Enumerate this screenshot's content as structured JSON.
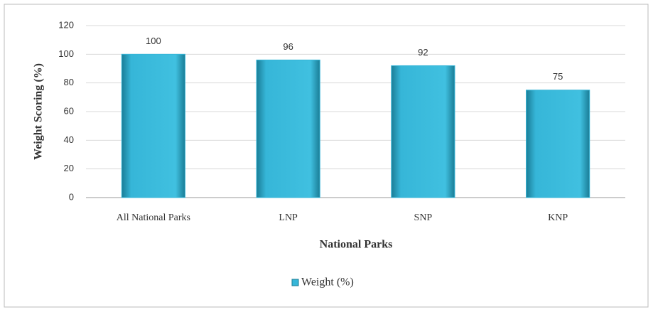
{
  "chart_data": {
    "type": "bar",
    "categories": [
      "All National Parks",
      "LNP",
      "SNP",
      "KNP"
    ],
    "series": [
      {
        "name": "Weight (%)",
        "color": "#36b6d8",
        "values": [
          100,
          96,
          92,
          75
        ]
      }
    ],
    "xlabel": "National Parks",
    "ylabel": "Weight Scoring (%)",
    "ylim": [
      0,
      120
    ],
    "yticks": [
      0,
      20,
      40,
      60,
      80,
      100,
      120
    ],
    "grid": true,
    "legend": "bottom"
  }
}
